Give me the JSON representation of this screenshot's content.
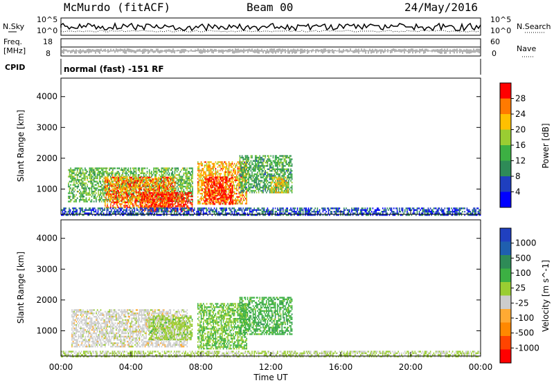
{
  "header": {
    "station": "McMurdo (fitACF)",
    "beam": "Beam 00",
    "date": "24/May/2016"
  },
  "top_panels": {
    "n_sky_label": "N.Sky",
    "n_search_label": "N.Search",
    "freq_label_1": "Freq.",
    "freq_label_2": "[MHz]",
    "nave_label": "Nave",
    "cpid_label": "CPID",
    "left_ticks": [
      "10^5",
      "10^0"
    ],
    "right_ticks": [
      "10^5",
      "10^0"
    ],
    "freq_ticks": [
      "18",
      "8"
    ],
    "nave_ticks": [
      "60",
      "0"
    ],
    "cpid_text": "normal (fast) -151 RF"
  },
  "colors": {
    "scale": [
      "#ff0000",
      "#ff7a00",
      "#ffc000",
      "#9acd32",
      "#3cb043",
      "#2e8b57",
      "#1f3fbf",
      "#0000ff"
    ],
    "velocity": [
      "#ff0000",
      "#ff4400",
      "#ff8800",
      "#ffaa33",
      "#cccccc",
      "#9acd32",
      "#3cb043",
      "#2e8b57",
      "#1f5faf",
      "#2040c0"
    ]
  },
  "chart_data": [
    {
      "type": "heatmap",
      "title": "",
      "ylabel": "Slant Range [km]",
      "xlabel": "",
      "ylim": [
        180,
        4600
      ],
      "x_ticks": [
        "00:00",
        "04:00",
        "08:00",
        "12:00",
        "16:00",
        "20:00",
        "00:00"
      ],
      "y_ticks": [
        1000,
        2000,
        3000,
        4000
      ],
      "colorbar": {
        "label": "Power [dB]",
        "ticks": [
          "4",
          "8",
          "12",
          "16",
          "20",
          "24",
          "28"
        ],
        "range": [
          0,
          30
        ]
      },
      "regions": [
        {
          "x_start_hr": 0.4,
          "x_end_hr": 7.5,
          "y_start_km": 600,
          "y_end_km": 1700,
          "value": 14
        },
        {
          "x_start_hr": 2.5,
          "x_end_hr": 6.5,
          "y_start_km": 400,
          "y_end_km": 1400,
          "value": 24
        },
        {
          "x_start_hr": 4.5,
          "x_end_hr": 7.5,
          "y_start_km": 300,
          "y_end_km": 900,
          "value": 28
        },
        {
          "x_start_hr": 7.8,
          "x_end_hr": 10.6,
          "y_start_km": 500,
          "y_end_km": 1900,
          "value": 22
        },
        {
          "x_start_hr": 8.2,
          "x_end_hr": 9.8,
          "y_start_km": 500,
          "y_end_km": 1400,
          "value": 28
        },
        {
          "x_start_hr": 10.2,
          "x_end_hr": 13.2,
          "y_start_km": 900,
          "y_end_km": 2100,
          "value": 12
        },
        {
          "x_start_hr": 12.0,
          "x_end_hr": 13.0,
          "y_start_km": 900,
          "y_end_km": 1400,
          "value": 20
        },
        {
          "x_start_hr": 0.0,
          "x_end_hr": 24.0,
          "y_start_km": 180,
          "y_end_km": 400,
          "value": 6
        }
      ]
    },
    {
      "type": "heatmap",
      "title": "",
      "ylabel": "Slant Range [km]",
      "xlabel": "Time UT",
      "ylim": [
        180,
        4600
      ],
      "x_ticks": [
        "00:00",
        "04:00",
        "08:00",
        "12:00",
        "16:00",
        "20:00",
        "00:00"
      ],
      "y_ticks": [
        1000,
        2000,
        3000,
        4000
      ],
      "colorbar": {
        "label": "Velocity [m s^-1]",
        "ticks": [
          "1000",
          "500",
          "100",
          "25",
          "-25",
          "-100",
          "-500",
          "-1000"
        ],
        "range": [
          -1000,
          1000
        ]
      },
      "regions": [
        {
          "x_start_hr": 0.6,
          "x_end_hr": 7.2,
          "y_start_km": 500,
          "y_end_km": 1700,
          "value": -100
        },
        {
          "x_start_hr": 5.0,
          "x_end_hr": 7.5,
          "y_start_km": 700,
          "y_end_km": 1500,
          "value": 100
        },
        {
          "x_start_hr": 7.8,
          "x_end_hr": 10.6,
          "y_start_km": 400,
          "y_end_km": 1900,
          "value": 200
        },
        {
          "x_start_hr": 10.2,
          "x_end_hr": 13.2,
          "y_start_km": 900,
          "y_end_km": 2100,
          "value": 300
        },
        {
          "x_start_hr": 0.0,
          "x_end_hr": 24.0,
          "y_start_km": 180,
          "y_end_km": 350,
          "value": 15
        }
      ]
    }
  ]
}
